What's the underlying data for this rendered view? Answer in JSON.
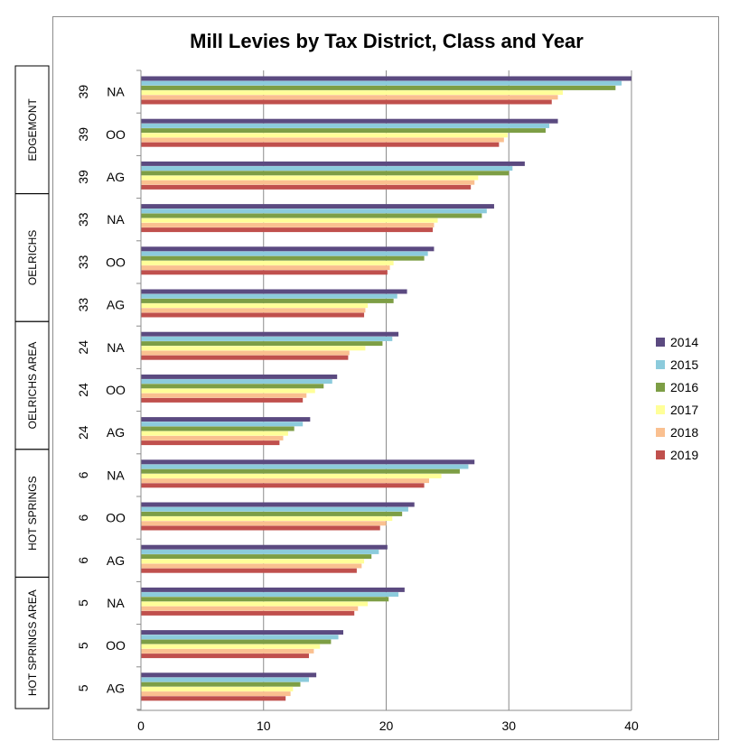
{
  "chart_data": {
    "type": "bar",
    "orientation": "horizontal",
    "title": "Mill Levies by Tax District, Class and Year",
    "xlim": [
      0,
      40
    ],
    "xticks": [
      0,
      10,
      20,
      30,
      40
    ],
    "grid": "vertical",
    "legend_position": "right",
    "groups": [
      {
        "name": "EDGEMONT",
        "rows": 3
      },
      {
        "name": "OELRICHS",
        "rows": 3
      },
      {
        "name": "OELRICHS AREA",
        "rows": 3
      },
      {
        "name": "HOT SPRINGS",
        "rows": 3
      },
      {
        "name": "HOT SPRINGS AREA",
        "rows": 3
      }
    ],
    "categories": [
      {
        "district": "39",
        "class": "NA"
      },
      {
        "district": "39",
        "class": "OO"
      },
      {
        "district": "39",
        "class": "AG"
      },
      {
        "district": "33",
        "class": "NA"
      },
      {
        "district": "33",
        "class": "OO"
      },
      {
        "district": "33",
        "class": "AG"
      },
      {
        "district": "24",
        "class": "NA"
      },
      {
        "district": "24",
        "class": "OO"
      },
      {
        "district": "24",
        "class": "AG"
      },
      {
        "district": "6",
        "class": "NA"
      },
      {
        "district": "6",
        "class": "OO"
      },
      {
        "district": "6",
        "class": "AG"
      },
      {
        "district": "5",
        "class": "NA"
      },
      {
        "district": "5",
        "class": "OO"
      },
      {
        "district": "5",
        "class": "AG"
      }
    ],
    "series": [
      {
        "name": "2014",
        "color": "#5b4a80",
        "values": [
          40.0,
          34.0,
          31.3,
          28.8,
          23.9,
          21.7,
          21.0,
          16.0,
          13.8,
          27.2,
          22.3,
          20.1,
          21.5,
          16.5,
          14.3
        ]
      },
      {
        "name": "2015",
        "color": "#8ccbdc",
        "values": [
          39.2,
          33.3,
          30.3,
          28.2,
          23.4,
          20.9,
          20.5,
          15.6,
          13.2,
          26.7,
          21.8,
          19.4,
          21.0,
          16.1,
          13.7
        ]
      },
      {
        "name": "2016",
        "color": "#7d9e45",
        "values": [
          38.7,
          33.0,
          30.0,
          27.8,
          23.1,
          20.6,
          19.7,
          14.9,
          12.5,
          26.0,
          21.3,
          18.8,
          20.2,
          15.5,
          13.0
        ]
      },
      {
        "name": "2017",
        "color": "#ffff99",
        "values": [
          34.4,
          29.9,
          27.5,
          24.2,
          20.6,
          18.5,
          18.3,
          14.2,
          12.0,
          24.5,
          20.5,
          18.2,
          18.5,
          14.6,
          12.4
        ]
      },
      {
        "name": "2018",
        "color": "#fac090",
        "values": [
          34.0,
          29.6,
          27.2,
          23.9,
          20.3,
          18.3,
          17.0,
          13.5,
          11.6,
          23.5,
          20.0,
          18.0,
          17.7,
          14.1,
          12.2
        ]
      },
      {
        "name": "2019",
        "color": "#c0504d",
        "values": [
          33.5,
          29.2,
          26.9,
          23.8,
          20.1,
          18.2,
          16.9,
          13.2,
          11.3,
          23.1,
          19.5,
          17.6,
          17.4,
          13.7,
          11.8
        ]
      }
    ]
  }
}
